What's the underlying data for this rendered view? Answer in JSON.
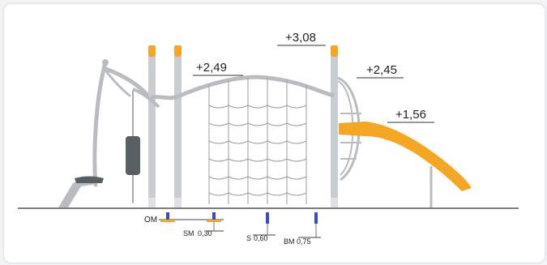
{
  "heights": {
    "top": "+3,08",
    "net_left": "+2,49",
    "tower_right": "+2,45",
    "slide": "+1,56"
  },
  "depth_markers": {
    "om": "OM",
    "sm": "SM",
    "sm_value": "0,30",
    "s": "S",
    "s_value": "0,60",
    "bm": "BM",
    "bm_value": "0,75"
  },
  "colors": {
    "post": "#c9ccd0",
    "frame": "#a9adb2",
    "accent": "#f5a623",
    "seat": "#5a5f63",
    "ground": "#555555",
    "marker_blue": "#3b4cc0"
  }
}
